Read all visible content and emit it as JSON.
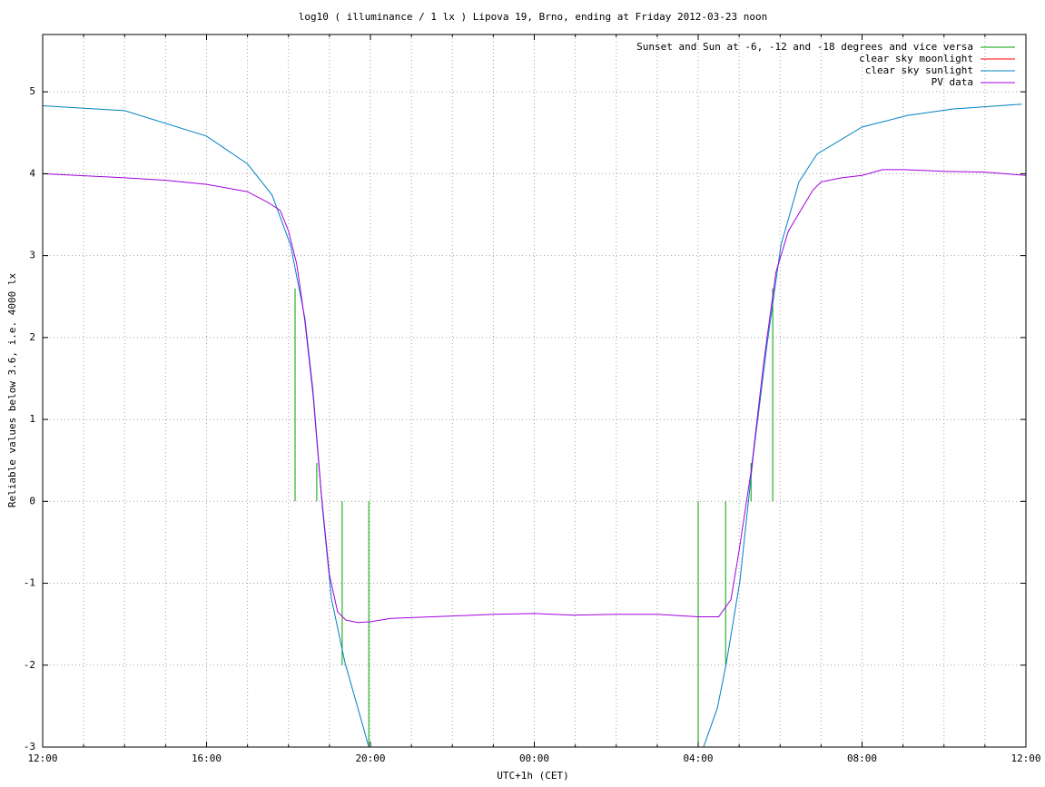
{
  "chart_data": {
    "type": "line",
    "title": "log10 ( illuminance / 1 lx ) Lipova 19, Brno, ending at Friday 2012-03-23 noon",
    "x_label": "UTC+1h (CET)",
    "y_label": "Reliable values below 3.6, i.e. 4000 lx",
    "xlim": [
      0,
      24
    ],
    "xticks": [
      {
        "value": 0,
        "label": "12:00"
      },
      {
        "value": 4,
        "label": "16:00"
      },
      {
        "value": 8,
        "label": "20:00"
      },
      {
        "value": 12,
        "label": "00:00"
      },
      {
        "value": 16,
        "label": "04:00"
      },
      {
        "value": 20,
        "label": "08:00"
      },
      {
        "value": 24,
        "label": "12:00"
      }
    ],
    "x_minor_ticks": [
      1,
      2,
      3,
      5,
      6,
      7,
      9,
      10,
      11,
      13,
      14,
      15,
      17,
      18,
      19,
      21,
      22,
      23
    ],
    "ylim": [
      -3,
      5.7
    ],
    "yticks": [
      -3,
      -2,
      -1,
      0,
      1,
      2,
      3,
      4,
      5
    ],
    "grid": true,
    "legend": "top-right",
    "series": [
      {
        "name": "Sunset and Sun at -6, -12 and -18 degrees and vice versa",
        "color": "#00a000",
        "x": [
          6.16,
          6.16,
          null,
          6.69,
          6.69,
          null,
          7.31,
          7.31,
          null,
          7.96,
          7.96,
          null,
          16.0,
          16.0,
          null,
          16.67,
          16.67,
          null,
          17.29,
          17.29,
          null,
          17.82,
          17.82
        ],
        "values": [
          0,
          2.6,
          null,
          0,
          0.47,
          null,
          0,
          -2.0,
          null,
          0,
          -3,
          null,
          -3,
          0,
          null,
          -2.0,
          0,
          null,
          0,
          0.47,
          null,
          0,
          2.6
        ]
      },
      {
        "name": "clear sky moonlight",
        "color": "#ff0000",
        "x": [],
        "values": []
      },
      {
        "name": "clear sky sunlight",
        "color": "#0080c0",
        "x": [
          0,
          2,
          4,
          5,
          5.6,
          6.05,
          6.4,
          6.6,
          6.83,
          7.05,
          7.38,
          7.82,
          7.96,
          null,
          16.13,
          16.47,
          16.69,
          17.02,
          17.35,
          17.68,
          18.02,
          18.46,
          18.9,
          20.0,
          21.1,
          22.2,
          23.9
        ],
        "values": [
          4.83,
          4.77,
          4.46,
          4.12,
          3.74,
          3.13,
          2.24,
          1.35,
          -0.09,
          -1.19,
          -1.97,
          -2.75,
          -3,
          null,
          -3,
          -2.52,
          -1.97,
          -0.97,
          0.58,
          1.91,
          3.13,
          3.9,
          4.24,
          4.57,
          4.71,
          4.79,
          4.85
        ]
      },
      {
        "name": "PV data",
        "color": "#a000e0",
        "x": [
          0,
          2,
          3,
          4,
          5,
          5.5,
          5.8,
          6.0,
          6.2,
          6.4,
          6.6,
          6.8,
          7.0,
          7.2,
          7.4,
          7.7,
          8,
          8.5,
          10,
          11,
          12,
          13,
          14,
          15,
          16,
          16.5,
          16.8,
          17.0,
          17.3,
          17.6,
          17.9,
          18.2,
          18.5,
          18.8,
          19.0,
          19.5,
          20.0,
          20.5,
          21,
          22,
          23,
          24
        ],
        "values": [
          4.0,
          3.95,
          3.92,
          3.87,
          3.78,
          3.65,
          3.55,
          3.3,
          2.9,
          2.2,
          1.3,
          0.1,
          -0.9,
          -1.35,
          -1.45,
          -1.48,
          -1.47,
          -1.43,
          -1.4,
          -1.38,
          -1.37,
          -1.39,
          -1.38,
          -1.38,
          -1.41,
          -1.41,
          -1.2,
          -0.6,
          0.4,
          1.7,
          2.8,
          3.3,
          3.55,
          3.8,
          3.9,
          3.95,
          3.98,
          4.05,
          4.05,
          4.03,
          4.02,
          3.98
        ]
      }
    ]
  }
}
